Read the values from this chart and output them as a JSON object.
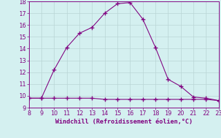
{
  "title": "",
  "xlabel": "Windchill (Refroidissement éolien,°C)",
  "x_curve1": [
    8,
    9,
    10,
    11,
    12,
    13,
    14,
    15,
    16,
    17,
    18,
    19,
    20,
    21,
    22,
    23
  ],
  "y_curve1": [
    9.8,
    9.8,
    12.2,
    14.1,
    15.3,
    15.8,
    17.0,
    17.8,
    17.9,
    16.5,
    14.1,
    11.4,
    10.8,
    9.9,
    9.8,
    9.6
  ],
  "x_curve2": [
    8,
    9,
    10,
    11,
    12,
    13,
    14,
    15,
    16,
    17,
    18,
    19,
    20,
    21,
    22,
    23
  ],
  "y_curve2": [
    9.8,
    9.8,
    9.8,
    9.8,
    9.8,
    9.8,
    9.7,
    9.7,
    9.7,
    9.7,
    9.7,
    9.7,
    9.7,
    9.7,
    9.7,
    9.6
  ],
  "line_color": "#800080",
  "bg_color": "#d4f0f0",
  "grid_color": "#b8d4d4",
  "text_color": "#800080",
  "xlim": [
    8,
    23
  ],
  "ylim": [
    9,
    18
  ],
  "xticks": [
    8,
    9,
    10,
    11,
    12,
    13,
    14,
    15,
    16,
    17,
    18,
    19,
    20,
    21,
    22,
    23
  ],
  "yticks": [
    9,
    10,
    11,
    12,
    13,
    14,
    15,
    16,
    17,
    18
  ],
  "marker": "+",
  "markersize": 4,
  "linewidth": 0.8,
  "tick_labelsize": 6,
  "xlabel_fontsize": 6.5
}
